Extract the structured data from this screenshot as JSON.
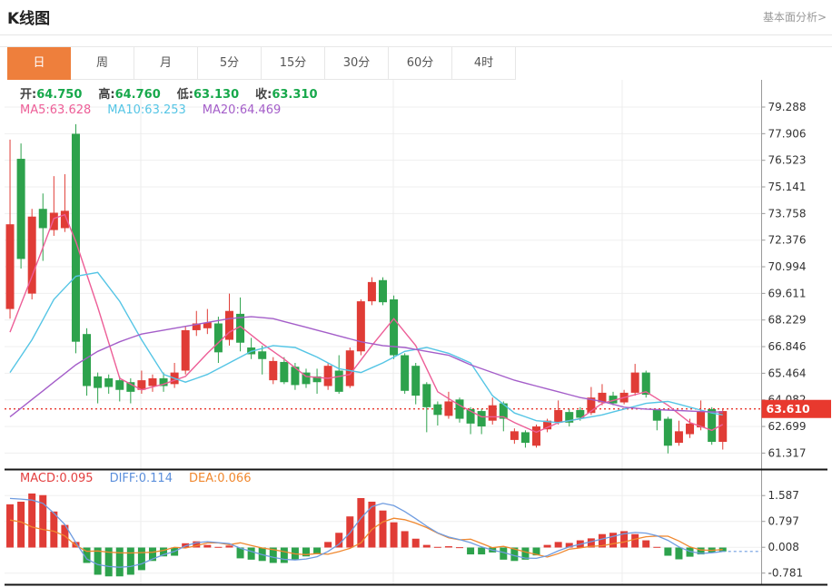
{
  "header": {
    "title": "K线图",
    "link_label": "基本面分析>"
  },
  "tabs": {
    "items": [
      "日",
      "周",
      "月",
      "5分",
      "15分",
      "30分",
      "60分",
      "4时"
    ],
    "active_index": 0
  },
  "ohlc_legend": {
    "items": [
      {
        "label": "开:",
        "value": "64.750"
      },
      {
        "label": "高:",
        "value": "64.760"
      },
      {
        "label": "低:",
        "value": "63.130"
      },
      {
        "label": "收:",
        "value": "63.310"
      }
    ]
  },
  "ma_legend": {
    "items": [
      {
        "label": "MA5:",
        "value": "63.628",
        "color": "#ed5e97"
      },
      {
        "label": "MA10:",
        "value": "63.253",
        "color": "#55c5e5"
      },
      {
        "label": "MA20:",
        "value": "64.469",
        "color": "#a45ec9"
      }
    ]
  },
  "macd_legend": {
    "items": [
      {
        "label": "MACD:",
        "value": "0.095",
        "color": "#e34040"
      },
      {
        "label": "DIFF:",
        "value": "0.114",
        "color": "#5b8fdc"
      },
      {
        "label": "DEA:",
        "value": "0.066",
        "color": "#f0882f"
      }
    ]
  },
  "price_axis": {
    "ticks": [
      79.288,
      77.906,
      76.523,
      75.141,
      73.758,
      72.376,
      70.994,
      69.611,
      68.229,
      66.846,
      65.464,
      64.082,
      62.699,
      61.317
    ],
    "current": "63.610"
  },
  "macd_axis": {
    "ticks": [
      1.587,
      0.797,
      0.008,
      -0.781
    ]
  },
  "colors": {
    "accent": "#ee7f3c",
    "up": "#e03c36",
    "down": "#2da24c",
    "ohlc_value": "#17a84b",
    "ma5": "#ed5e97",
    "ma10": "#55c5e5",
    "ma20": "#a45ec9",
    "diff": "#6f9ce0",
    "dea": "#f0882f",
    "price_line": "#e8372e",
    "badge_bg": "#e8392e",
    "axis_text": "#333333",
    "grid": "#efefef"
  },
  "chart_data": {
    "type": "candlestick+macd",
    "title": "K线图",
    "slots": 69,
    "price_range": {
      "top_tick": 79.288,
      "bottom_tick": 61.317
    },
    "current_price": 63.61,
    "candles": [
      [
        68.8,
        77.6,
        68.3,
        73.2
      ],
      [
        76.6,
        77.4,
        70.9,
        71.4
      ],
      [
        69.6,
        74.0,
        69.3,
        73.6
      ],
      [
        74.0,
        74.8,
        71.3,
        73.0
      ],
      [
        72.9,
        75.7,
        72.6,
        73.8
      ],
      [
        73.0,
        75.8,
        72.8,
        73.9
      ],
      [
        77.9,
        78.4,
        66.5,
        67.1
      ],
      [
        67.5,
        67.8,
        64.3,
        64.8
      ],
      [
        65.3,
        65.5,
        63.9,
        64.7
      ],
      [
        65.2,
        65.4,
        64.4,
        64.75
      ],
      [
        65.1,
        65.3,
        64.0,
        64.6
      ],
      [
        65.0,
        65.2,
        63.9,
        64.5
      ],
      [
        64.6,
        65.6,
        64.4,
        65.1
      ],
      [
        64.8,
        65.4,
        64.5,
        65.2
      ],
      [
        65.2,
        65.5,
        64.5,
        64.8
      ],
      [
        64.9,
        66.0,
        64.7,
        65.5
      ],
      [
        65.6,
        67.9,
        65.4,
        67.7
      ],
      [
        67.7,
        68.7,
        67.4,
        68.05
      ],
      [
        67.8,
        68.8,
        67.5,
        68.1
      ],
      [
        68.05,
        68.4,
        66.0,
        66.55
      ],
      [
        67.2,
        69.6,
        66.9,
        68.7
      ],
      [
        68.55,
        69.4,
        66.6,
        67.05
      ],
      [
        66.8,
        67.3,
        66.2,
        66.45
      ],
      [
        66.6,
        66.9,
        65.4,
        66.2
      ],
      [
        65.1,
        66.3,
        64.9,
        66.1
      ],
      [
        66.05,
        66.3,
        64.9,
        65.0
      ],
      [
        65.8,
        66.0,
        64.6,
        64.85
      ],
      [
        65.5,
        65.7,
        64.7,
        64.9
      ],
      [
        65.3,
        65.7,
        64.4,
        65.0
      ],
      [
        64.8,
        66.0,
        64.6,
        65.85
      ],
      [
        65.6,
        66.4,
        64.4,
        64.5
      ],
      [
        64.8,
        66.8,
        64.7,
        66.65
      ],
      [
        66.6,
        69.3,
        66.4,
        69.2
      ],
      [
        69.2,
        70.45,
        69.0,
        70.2
      ],
      [
        70.3,
        70.45,
        69.0,
        69.15
      ],
      [
        69.3,
        69.5,
        66.2,
        66.4
      ],
      [
        66.4,
        66.5,
        64.4,
        64.55
      ],
      [
        65.85,
        66.0,
        63.85,
        64.3
      ],
      [
        64.9,
        65.0,
        62.4,
        63.7
      ],
      [
        63.85,
        64.0,
        62.75,
        63.3
      ],
      [
        63.25,
        64.5,
        63.1,
        64.0
      ],
      [
        64.1,
        64.2,
        62.9,
        63.1
      ],
      [
        63.6,
        63.7,
        62.3,
        62.85
      ],
      [
        63.5,
        63.6,
        62.3,
        62.7
      ],
      [
        63.0,
        64.2,
        62.8,
        63.8
      ],
      [
        63.9,
        64.0,
        62.45,
        63.1
      ],
      [
        62.0,
        62.6,
        61.8,
        62.45
      ],
      [
        62.4,
        62.5,
        61.6,
        61.85
      ],
      [
        61.7,
        62.8,
        61.6,
        62.7
      ],
      [
        62.55,
        63.1,
        62.4,
        63.0
      ],
      [
        62.9,
        64.05,
        62.8,
        63.55
      ],
      [
        63.45,
        63.6,
        62.7,
        62.9
      ],
      [
        63.55,
        63.7,
        63.0,
        63.15
      ],
      [
        63.4,
        64.75,
        63.3,
        64.2
      ],
      [
        63.95,
        64.9,
        63.8,
        64.45
      ],
      [
        64.3,
        64.5,
        63.8,
        63.9
      ],
      [
        63.95,
        64.6,
        63.85,
        64.45
      ],
      [
        64.45,
        65.95,
        64.3,
        65.5
      ],
      [
        65.5,
        65.6,
        64.2,
        64.35
      ],
      [
        63.55,
        63.6,
        62.5,
        63.0
      ],
      [
        63.1,
        63.2,
        61.3,
        61.7
      ],
      [
        61.85,
        63.0,
        61.7,
        62.45
      ],
      [
        62.3,
        63.1,
        62.1,
        62.85
      ],
      [
        62.65,
        64.05,
        62.5,
        63.5
      ],
      [
        63.6,
        63.7,
        61.75,
        61.9
      ],
      [
        61.9,
        63.6,
        61.5,
        63.5
      ]
    ],
    "ma5": [
      [
        0,
        67.6
      ],
      [
        2,
        70.5
      ],
      [
        4,
        73.5
      ],
      [
        5,
        73.7
      ],
      [
        6,
        72.3
      ],
      [
        8,
        68.9
      ],
      [
        10,
        65.2
      ],
      [
        12,
        64.6
      ],
      [
        14,
        64.9
      ],
      [
        16,
        65.3
      ],
      [
        18,
        66.5
      ],
      [
        20,
        67.6
      ],
      [
        21,
        67.9
      ],
      [
        23,
        67.0
      ],
      [
        25,
        66.2
      ],
      [
        27,
        65.3
      ],
      [
        29,
        65.2
      ],
      [
        31,
        65.4
      ],
      [
        33,
        66.9
      ],
      [
        35,
        68.3
      ],
      [
        37,
        66.9
      ],
      [
        39,
        64.5
      ],
      [
        41,
        63.8
      ],
      [
        43,
        63.2
      ],
      [
        45,
        63.2
      ],
      [
        46,
        62.9
      ],
      [
        48,
        62.4
      ],
      [
        50,
        62.9
      ],
      [
        52,
        63.1
      ],
      [
        54,
        63.9
      ],
      [
        56,
        64.2
      ],
      [
        58,
        64.5
      ],
      [
        60,
        63.8
      ],
      [
        62,
        62.9
      ],
      [
        64,
        62.5
      ],
      [
        65,
        62.8
      ]
    ],
    "ma10": [
      [
        0,
        65.5
      ],
      [
        2,
        67.2
      ],
      [
        4,
        69.3
      ],
      [
        6,
        70.5
      ],
      [
        8,
        70.7
      ],
      [
        10,
        69.2
      ],
      [
        12,
        67.2
      ],
      [
        14,
        65.4
      ],
      [
        16,
        65.0
      ],
      [
        18,
        65.4
      ],
      [
        20,
        66.0
      ],
      [
        22,
        66.6
      ],
      [
        24,
        66.9
      ],
      [
        26,
        66.8
      ],
      [
        28,
        66.3
      ],
      [
        30,
        65.7
      ],
      [
        32,
        65.5
      ],
      [
        34,
        66.0
      ],
      [
        36,
        66.6
      ],
      [
        38,
        66.8
      ],
      [
        40,
        66.5
      ],
      [
        42,
        66.0
      ],
      [
        44,
        64.3
      ],
      [
        46,
        63.4
      ],
      [
        48,
        63.0
      ],
      [
        50,
        62.9
      ],
      [
        52,
        63.1
      ],
      [
        54,
        63.3
      ],
      [
        56,
        63.6
      ],
      [
        58,
        63.9
      ],
      [
        60,
        64.0
      ],
      [
        62,
        63.7
      ],
      [
        64,
        63.4
      ],
      [
        65,
        63.3
      ]
    ],
    "ma20": [
      [
        0,
        63.2
      ],
      [
        2,
        64.1
      ],
      [
        4,
        65.0
      ],
      [
        6,
        65.9
      ],
      [
        8,
        66.6
      ],
      [
        10,
        67.1
      ],
      [
        12,
        67.5
      ],
      [
        14,
        67.7
      ],
      [
        16,
        67.9
      ],
      [
        18,
        68.1
      ],
      [
        20,
        68.3
      ],
      [
        22,
        68.4
      ],
      [
        24,
        68.3
      ],
      [
        26,
        68.0
      ],
      [
        28,
        67.7
      ],
      [
        30,
        67.4
      ],
      [
        32,
        67.1
      ],
      [
        34,
        66.9
      ],
      [
        36,
        66.8
      ],
      [
        38,
        66.6
      ],
      [
        40,
        66.4
      ],
      [
        42,
        65.9
      ],
      [
        44,
        65.5
      ],
      [
        46,
        65.1
      ],
      [
        48,
        64.8
      ],
      [
        50,
        64.5
      ],
      [
        52,
        64.2
      ],
      [
        54,
        64.0
      ],
      [
        56,
        63.7
      ],
      [
        58,
        63.6
      ],
      [
        60,
        63.55
      ],
      [
        62,
        63.5
      ],
      [
        64,
        63.45
      ],
      [
        65,
        63.45
      ]
    ],
    "macd_hist": [
      1.32,
      1.4,
      1.65,
      1.6,
      1.1,
      0.69,
      0.17,
      -0.47,
      -0.83,
      -0.88,
      -0.88,
      -0.83,
      -0.69,
      -0.41,
      -0.27,
      -0.25,
      0.13,
      0.19,
      0.08,
      0.02,
      0.06,
      -0.33,
      -0.37,
      -0.41,
      -0.47,
      -0.47,
      -0.37,
      -0.27,
      -0.19,
      0.17,
      0.45,
      0.95,
      1.51,
      1.4,
      1.13,
      0.77,
      0.5,
      0.27,
      0.08,
      0.02,
      0.04,
      0.01,
      -0.21,
      -0.21,
      -0.15,
      -0.37,
      -0.41,
      -0.37,
      -0.24,
      0.08,
      0.17,
      0.14,
      0.22,
      0.28,
      0.41,
      0.45,
      0.5,
      0.41,
      0.22,
      0.02,
      -0.25,
      -0.36,
      -0.28,
      -0.21,
      -0.15,
      -0.12
    ],
    "diff_line": [
      1.5,
      1.48,
      1.45,
      1.35,
      1.05,
      0.7,
      0.15,
      -0.35,
      -0.52,
      -0.58,
      -0.6,
      -0.58,
      -0.5,
      -0.35,
      -0.22,
      -0.12,
      0.05,
      0.15,
      0.18,
      0.15,
      0.12,
      -0.02,
      -0.12,
      -0.22,
      -0.3,
      -0.36,
      -0.38,
      -0.35,
      -0.28,
      -0.12,
      0.1,
      0.45,
      0.9,
      1.25,
      1.35,
      1.28,
      1.1,
      0.88,
      0.65,
      0.45,
      0.32,
      0.24,
      0.15,
      0.02,
      -0.08,
      -0.15,
      -0.25,
      -0.32,
      -0.33,
      -0.25,
      -0.1,
      0.02,
      0.1,
      0.18,
      0.26,
      0.34,
      0.42,
      0.46,
      0.44,
      0.36,
      0.22,
      0.02,
      -0.12,
      -0.18,
      -0.16,
      -0.12
    ]
  }
}
